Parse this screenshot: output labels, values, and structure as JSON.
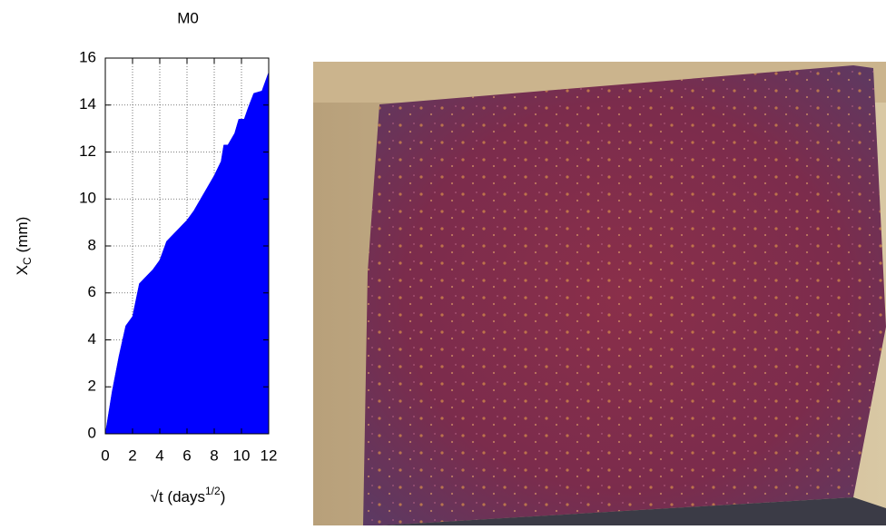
{
  "chart_data": {
    "type": "area",
    "title": "M0",
    "ylabel": "X",
    "ylabel_sub": "C",
    "ylabel_unit": "(mm)",
    "xlabel": "√t (days",
    "xlabel_sup": "1/2",
    "xlabel_end": ")",
    "x": [
      0,
      0.5,
      1,
      1.5,
      2,
      2.5,
      3,
      3.5,
      4,
      4.5,
      5,
      5.5,
      6,
      6.5,
      7,
      7.5,
      8,
      8.5,
      8.7,
      9,
      9.5,
      9.8,
      10.2,
      10.5,
      10.9,
      11.5,
      12
    ],
    "values": [
      0,
      1.8,
      3.3,
      4.6,
      5.0,
      6.4,
      6.7,
      7.0,
      7.4,
      8.2,
      8.5,
      8.8,
      9.1,
      9.5,
      10.0,
      10.5,
      11.0,
      11.6,
      12.3,
      12.3,
      12.8,
      13.4,
      13.4,
      13.9,
      14.5,
      14.6,
      15.4
    ],
    "color": "#0000ff",
    "xlim": [
      0,
      12
    ],
    "xticks": [
      0,
      2,
      4,
      6,
      8,
      10,
      12
    ],
    "ylim": [
      0,
      16
    ],
    "yticks": [
      0,
      2,
      4,
      6,
      8,
      10,
      12,
      14,
      16
    ],
    "grid": true
  }
}
